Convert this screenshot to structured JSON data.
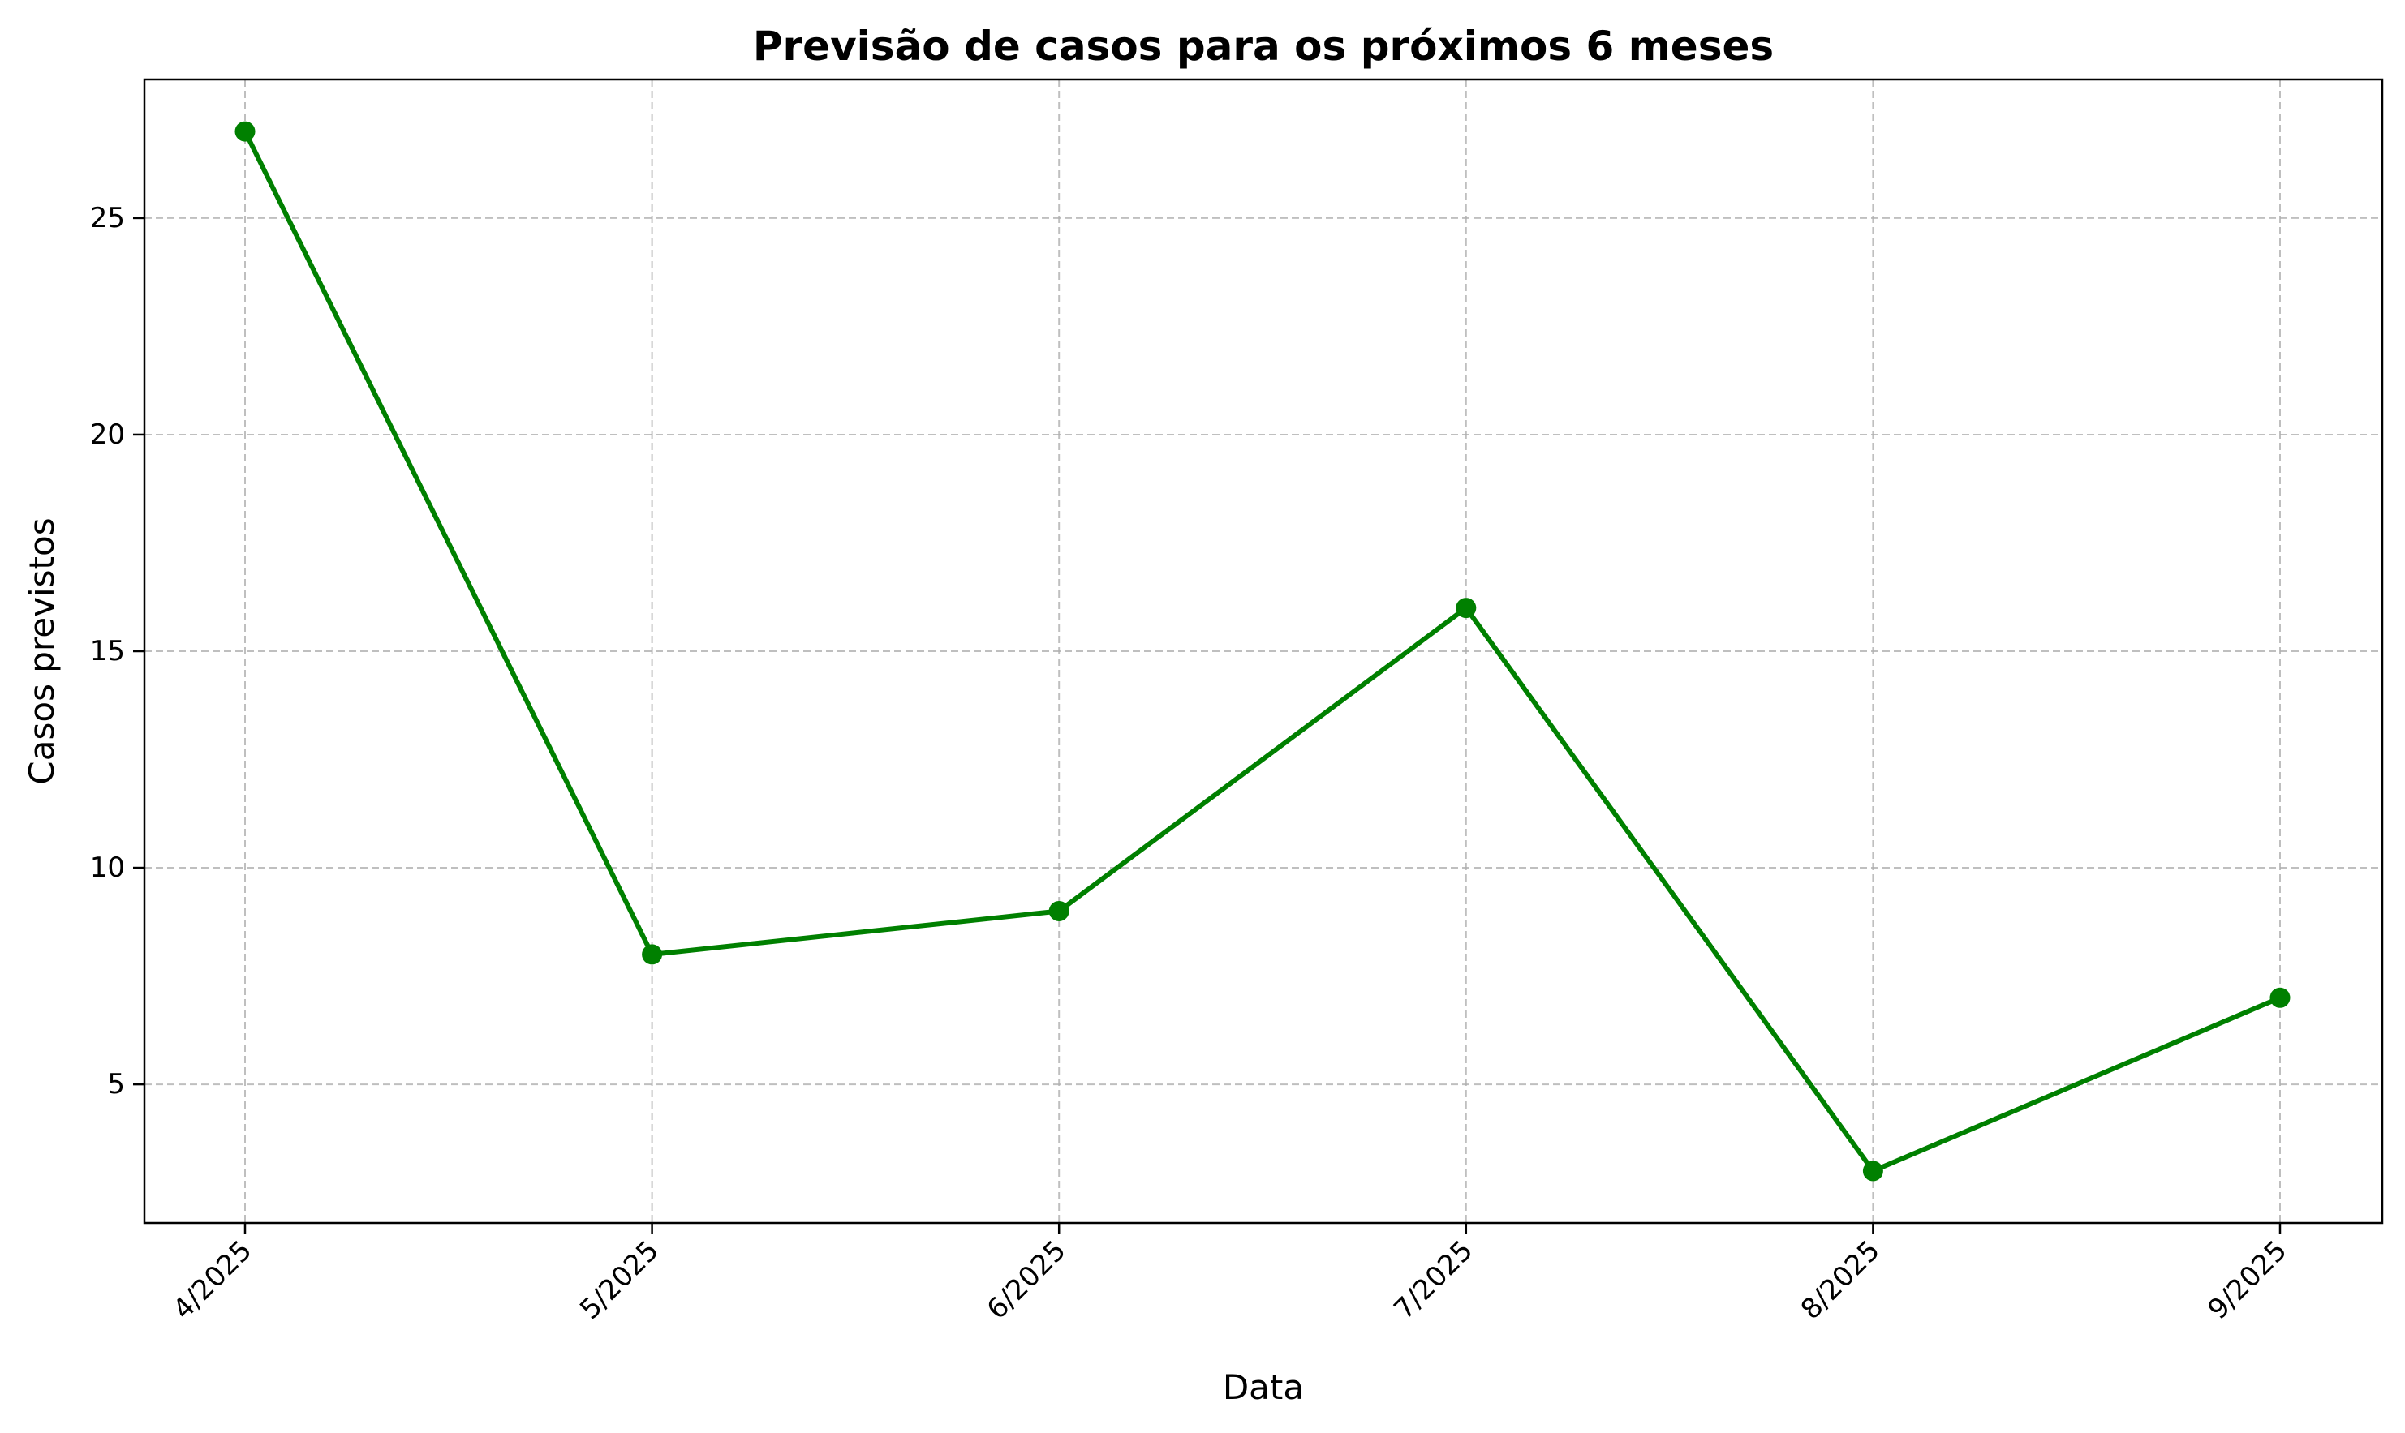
{
  "chart_data": {
    "type": "line",
    "title": "Previsão de casos para os próximos 6 meses",
    "xlabel": "Data",
    "ylabel": "Casos previstos",
    "categories": [
      "4/2025",
      "5/2025",
      "6/2025",
      "7/2025",
      "8/2025",
      "9/2025"
    ],
    "x": [
      "2025-04",
      "2025-05",
      "2025-06",
      "2025-07",
      "2025-08",
      "2025-09"
    ],
    "series": [
      {
        "values": [
          27,
          8,
          9,
          16,
          3,
          7
        ],
        "color": "#008000"
      }
    ],
    "yticks": [
      5,
      10,
      15,
      20,
      25
    ],
    "ylim": [
      1.8,
      28.2
    ],
    "grid": true,
    "legend": "none",
    "x_tick_rotation_deg": 45
  }
}
